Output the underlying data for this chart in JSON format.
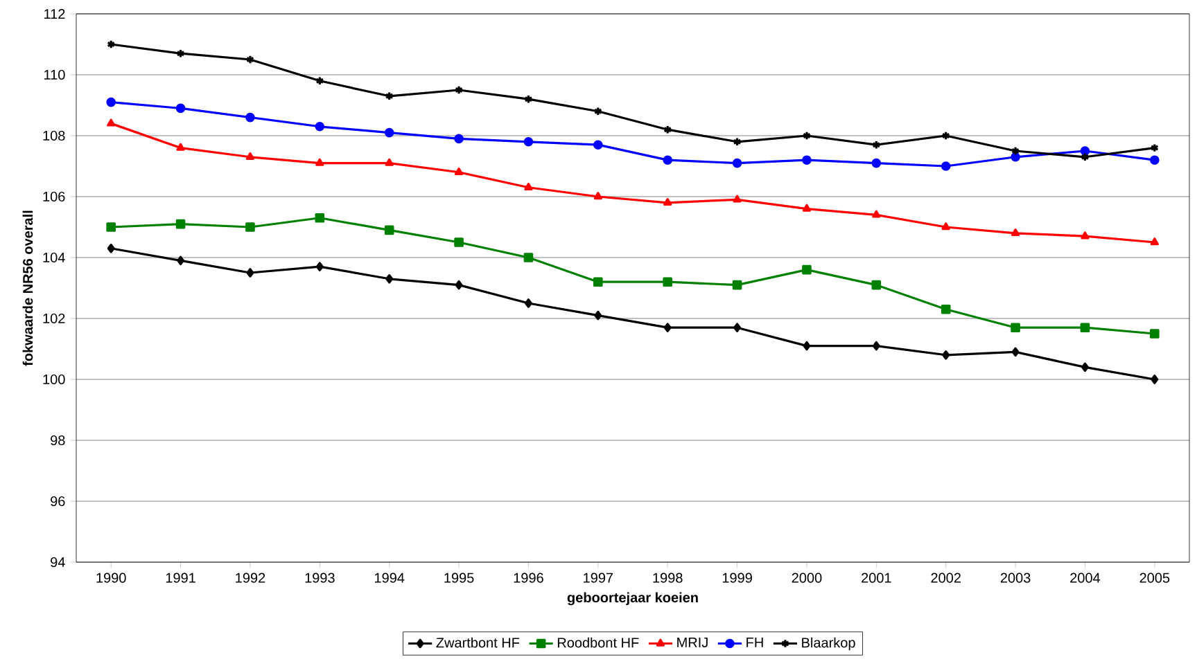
{
  "chart_data": {
    "type": "line",
    "xlabel": "geboortejaar koeien",
    "ylabel": "fokwaarde NR56 overall",
    "categories": [
      "1990",
      "1991",
      "1992",
      "1993",
      "1994",
      "1995",
      "1996",
      "1997",
      "1998",
      "1999",
      "2000",
      "2001",
      "2002",
      "2003",
      "2004",
      "2005"
    ],
    "series": [
      {
        "name": "Zwartbont HF",
        "color": "#000000",
        "marker": "diamond",
        "values": [
          104.3,
          103.9,
          103.5,
          103.7,
          103.3,
          103.1,
          102.5,
          102.1,
          101.7,
          101.7,
          101.1,
          101.1,
          100.8,
          100.9,
          100.4,
          100.0
        ]
      },
      {
        "name": "Roodbont HF",
        "color": "#008000",
        "marker": "square",
        "values": [
          105.0,
          105.1,
          105.0,
          105.3,
          104.9,
          104.5,
          104.0,
          103.2,
          103.2,
          103.1,
          103.6,
          103.1,
          102.3,
          101.7,
          101.7,
          101.5
        ]
      },
      {
        "name": "MRIJ",
        "color": "#ff0000",
        "marker": "triangle",
        "values": [
          108.4,
          107.6,
          107.3,
          107.1,
          107.1,
          106.8,
          106.3,
          106.0,
          105.8,
          105.9,
          105.6,
          105.4,
          105.0,
          104.8,
          104.7,
          104.5
        ]
      },
      {
        "name": "FH",
        "color": "#0000ff",
        "marker": "circle",
        "values": [
          109.1,
          108.9,
          108.6,
          108.3,
          108.1,
          107.9,
          107.8,
          107.7,
          107.2,
          107.1,
          107.2,
          107.1,
          107.0,
          107.3,
          107.5,
          107.2
        ]
      },
      {
        "name": "Blaarkop",
        "color": "#000000",
        "marker": "cross",
        "values": [
          111.0,
          110.7,
          110.5,
          109.8,
          109.3,
          109.5,
          109.2,
          108.8,
          108.2,
          107.8,
          108.0,
          107.7,
          108.0,
          107.5,
          107.3,
          107.6
        ]
      }
    ],
    "ylim": [
      94,
      112
    ],
    "yticks": [
      94,
      96,
      98,
      100,
      102,
      104,
      106,
      108,
      110,
      112
    ],
    "grid": "y",
    "legend": "bottom",
    "line_style": "solid"
  }
}
